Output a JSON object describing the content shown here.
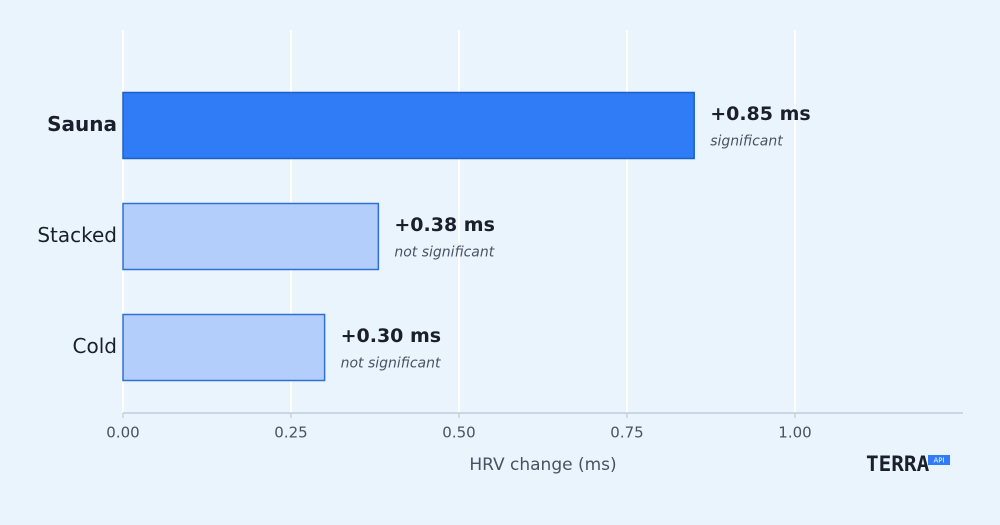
{
  "chart_data": {
    "type": "barh",
    "categories": [
      "Sauna",
      "Stacked",
      "Cold"
    ],
    "values": [
      0.85,
      0.38,
      0.3
    ],
    "value_labels": [
      "+0.85 ms",
      "+0.38 ms",
      "+0.30 ms"
    ],
    "notes": [
      "significant",
      "not significant",
      "not significant"
    ],
    "colors": [
      "#2f7cf6",
      "#b3cefb",
      "#b3cefb"
    ],
    "emphasis": [
      true,
      false,
      false
    ],
    "xlabel": "HRV change (ms)",
    "xlim": [
      0,
      1.25
    ],
    "xticks": [
      {
        "value": 0,
        "label": "0.00"
      },
      {
        "value": 0.25,
        "label": "0.25"
      },
      {
        "value": 0.5,
        "label": "0.50"
      },
      {
        "value": 0.75,
        "label": "0.75"
      },
      {
        "value": 1,
        "label": "1.00"
      }
    ],
    "grid": true
  },
  "logo": {
    "text": "TERRA",
    "badge": "API"
  }
}
